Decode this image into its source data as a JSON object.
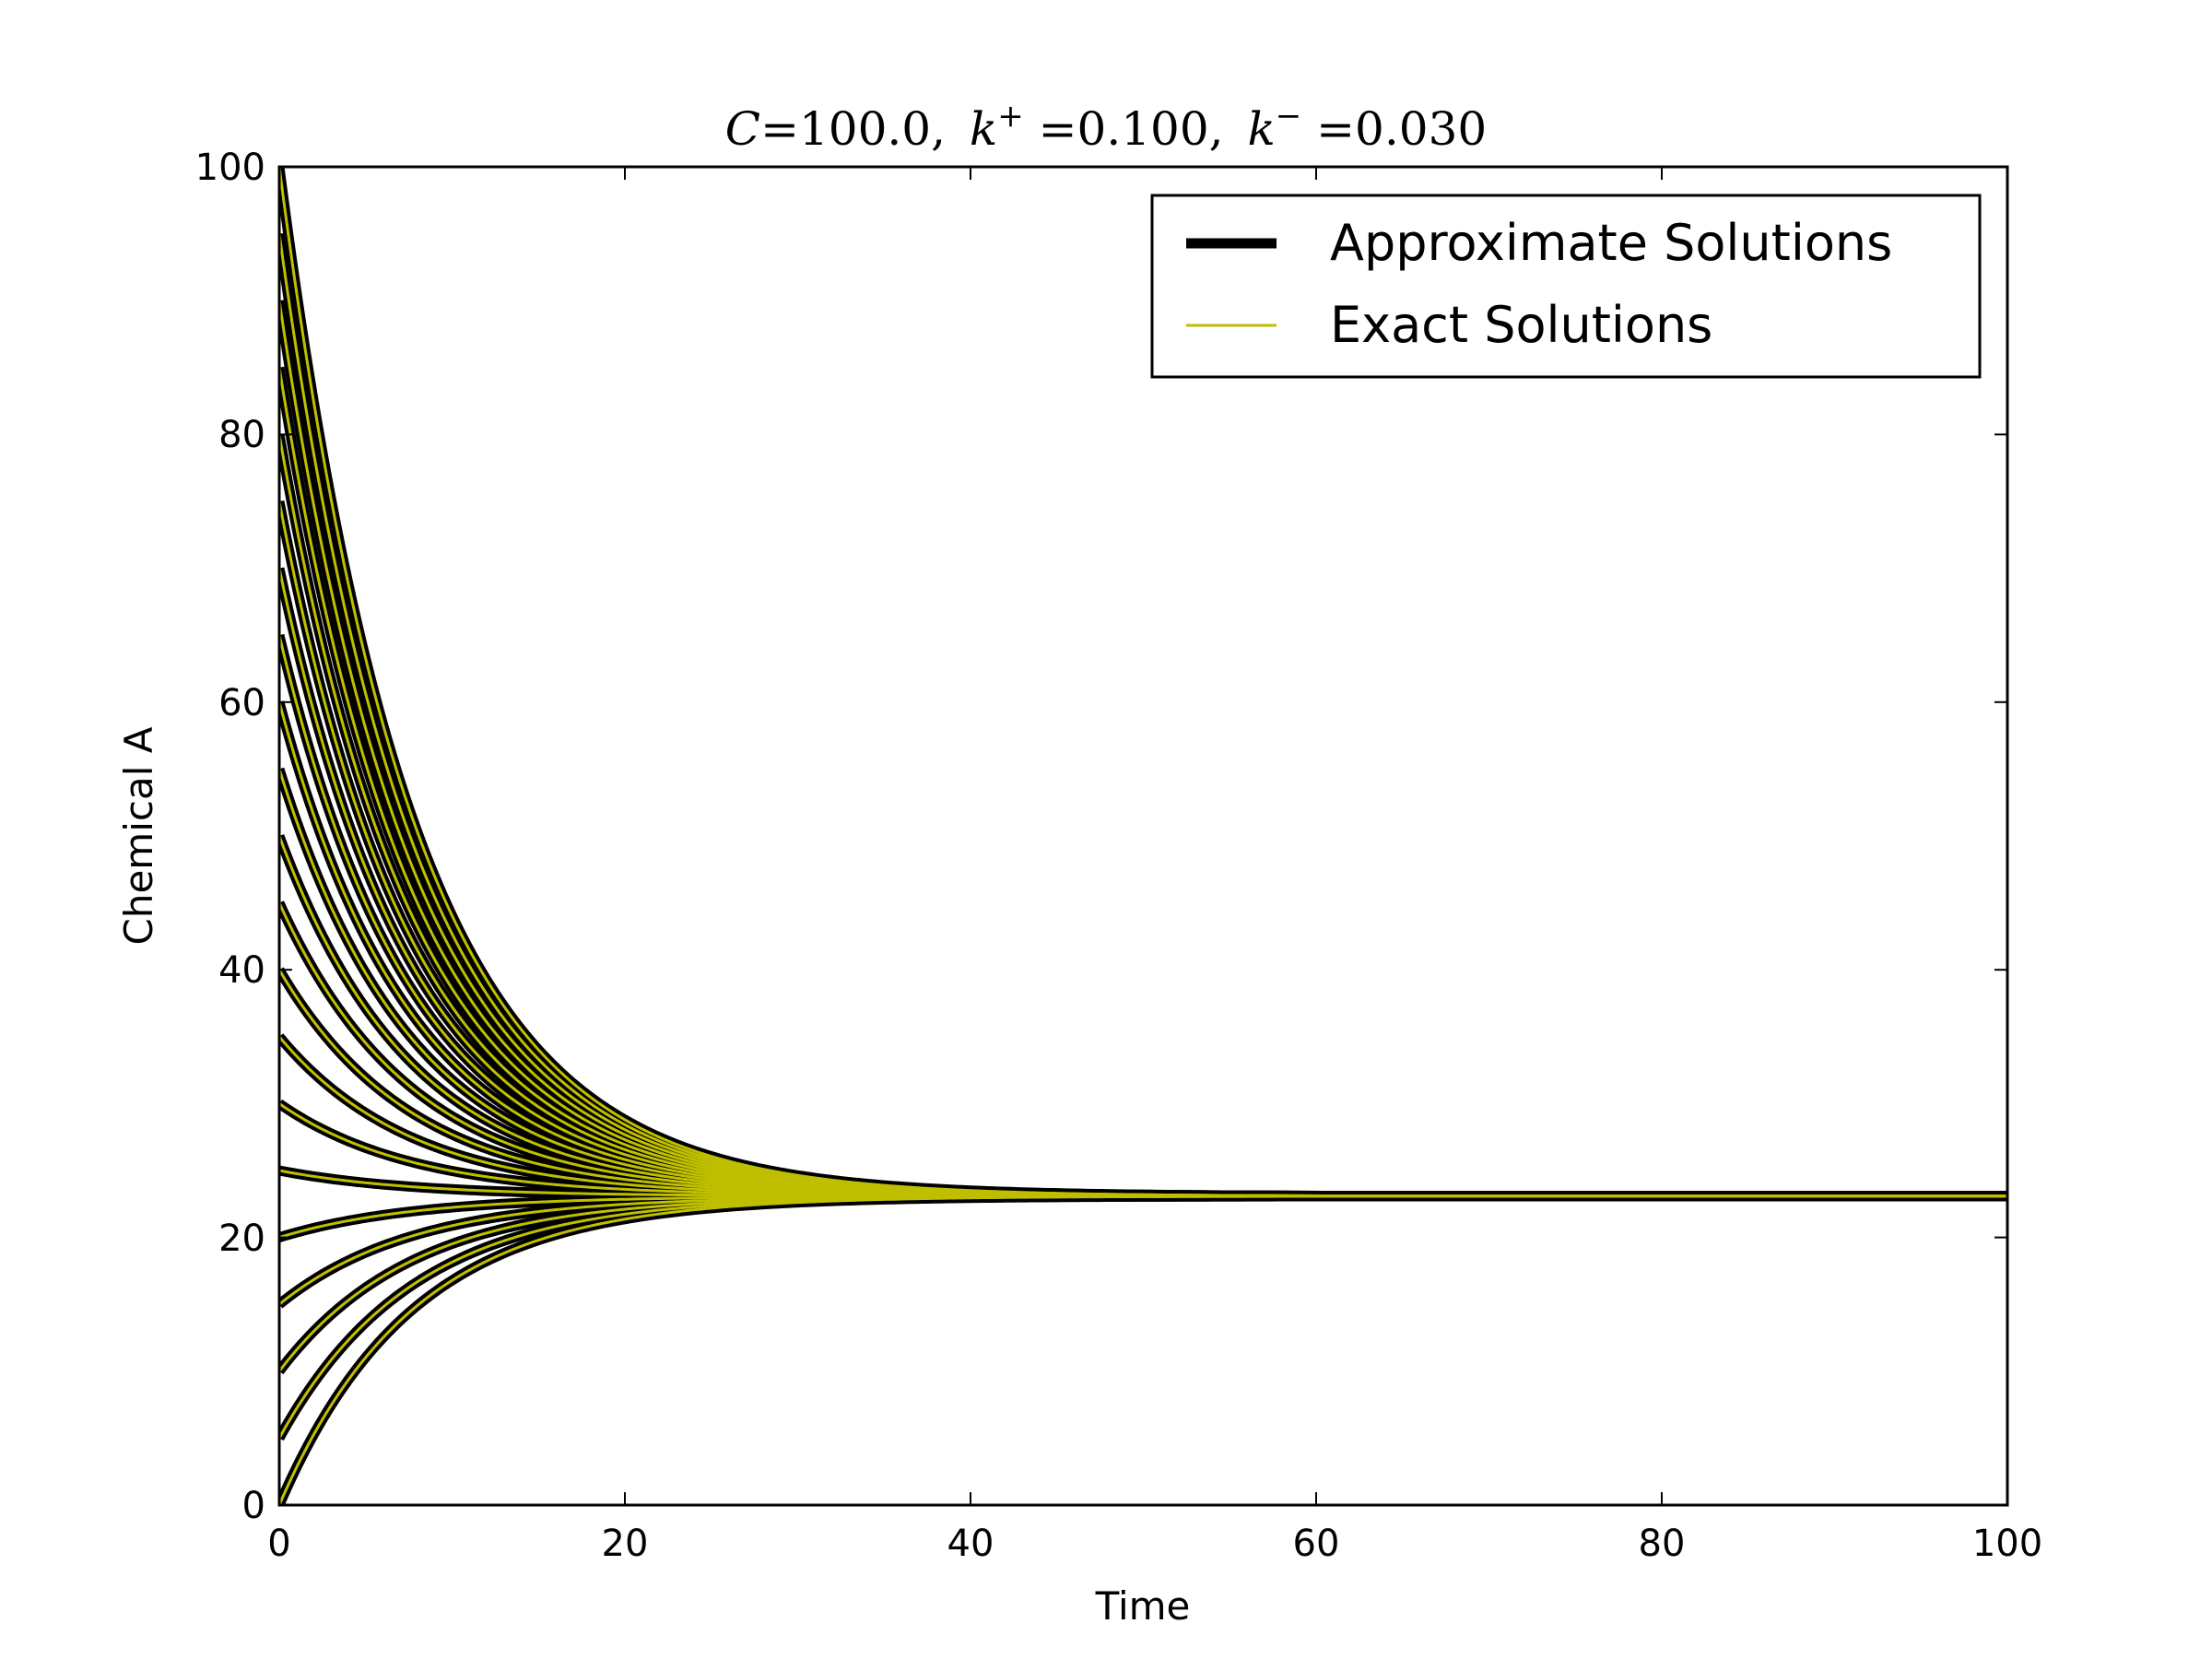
{
  "chart_data": {
    "type": "line",
    "title": {
      "c_symbol": "C",
      "c_value": "=100.0,",
      "kplus_symbol": "k",
      "kplus_sup": "+",
      "kplus_value": " =0.100,",
      "kminus_symbol": "k",
      "kminus_sup": "−",
      "kminus_value": " =0.030"
    },
    "xlabel": "Time",
    "ylabel": "Chemical A",
    "xlim": [
      0,
      100
    ],
    "ylim": [
      0,
      100
    ],
    "xticks": [
      0,
      20,
      40,
      60,
      80,
      100
    ],
    "yticks": [
      0,
      20,
      40,
      60,
      80,
      100
    ],
    "xtick_labels": [
      "0",
      "20",
      "40",
      "60",
      "80",
      "100"
    ],
    "ytick_labels": [
      "0",
      "20",
      "40",
      "60",
      "80",
      "100"
    ],
    "model": {
      "C": 100.0,
      "k_plus": 0.1,
      "k_minus": 0.03,
      "equilibrium": 23.08
    },
    "initial_values": [
      0,
      5,
      10,
      15,
      20,
      25,
      30,
      35,
      40,
      45,
      50,
      55,
      60,
      65,
      70,
      75,
      80,
      85,
      90,
      95,
      100
    ],
    "series": [
      {
        "name": "Approximate Solutions",
        "color": "#000000"
      },
      {
        "name": "Exact Solutions",
        "color": "#bfbf00"
      }
    ],
    "legend_position": "upper right"
  }
}
